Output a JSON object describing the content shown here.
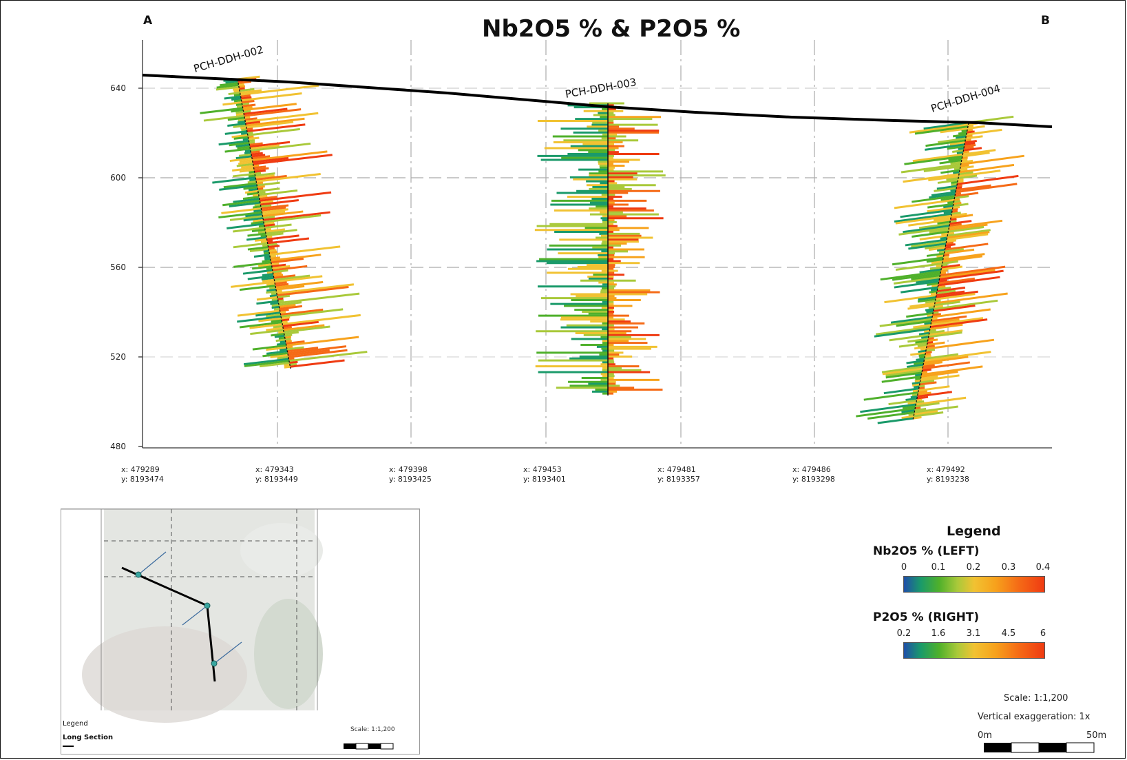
{
  "title": "Nb2O5 % & P2O5 %",
  "section_ends": {
    "start": "A",
    "end": "B"
  },
  "drillholes": [
    {
      "name": "PCH-DDH-002"
    },
    {
      "name": "PCH-DDH-003"
    },
    {
      "name": "PCH-DDH-004"
    }
  ],
  "elevation_ticks": [
    "640",
    "600",
    "560",
    "520",
    "480"
  ],
  "coordinates": [
    {
      "x": "x: 479289",
      "y": "y: 8193474"
    },
    {
      "x": "x: 479343",
      "y": "y: 8193449"
    },
    {
      "x": "x: 479398",
      "y": "y: 8193425"
    },
    {
      "x": "x: 479453",
      "y": "y: 8193401"
    },
    {
      "x": "x: 479481",
      "y": "y: 8193357"
    },
    {
      "x": "x: 479486",
      "y": "y: 8193298"
    },
    {
      "x": "x: 479492",
      "y": "y: 8193238"
    }
  ],
  "legend": {
    "title": "Legend",
    "nb2o5": {
      "label": "Nb2O5 % (LEFT)",
      "ticks": [
        "0",
        "0.1",
        "0.2",
        "0.3",
        "0.4"
      ]
    },
    "p2o5": {
      "label": "P2O5 % (RIGHT)",
      "ticks": [
        "0.2",
        "1.6",
        "3.1",
        "4.5",
        "6"
      ]
    },
    "colors": [
      "#1f4ea8",
      "#1a9a6a",
      "#4fb02b",
      "#a9c93a",
      "#f1c232",
      "#f7a21c",
      "#f56a16",
      "#ef3b12"
    ]
  },
  "scale": {
    "scale_text": "Scale: 1:1,200",
    "exaggeration_text": "Vertical exaggeration: 1x",
    "bar_start": "0m",
    "bar_end": "50m"
  },
  "inset": {
    "legend_label": "Legend",
    "long_section_label": "Long Section",
    "scale_label": "Scale: 1:1,200"
  }
}
